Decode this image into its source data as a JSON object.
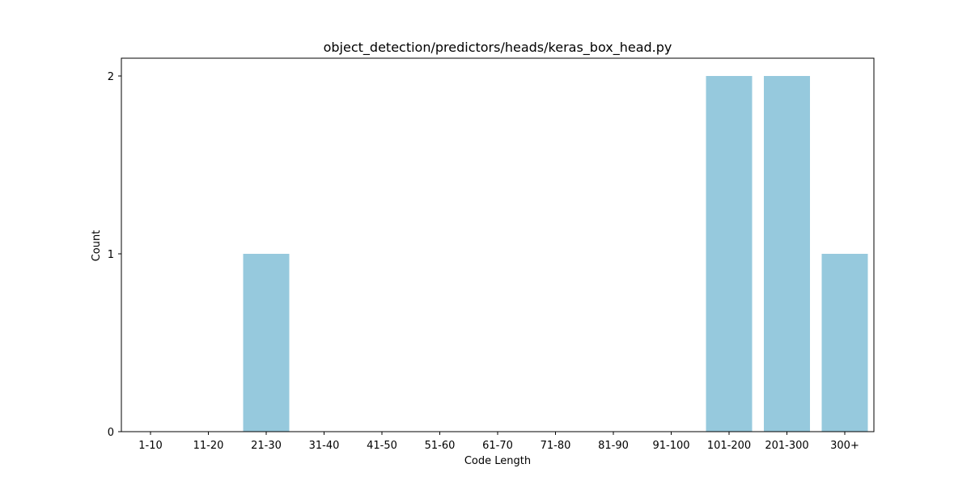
{
  "chart_data": {
    "type": "bar",
    "title": "object_detection/predictors/heads/keras_box_head.py",
    "xlabel": "Code Length",
    "ylabel": "Count",
    "categories": [
      "1-10",
      "11-20",
      "21-30",
      "31-40",
      "41-50",
      "51-60",
      "61-70",
      "71-80",
      "81-90",
      "91-100",
      "101-200",
      "201-300",
      "300+"
    ],
    "values": [
      0,
      0,
      1,
      0,
      0,
      0,
      0,
      0,
      0,
      0,
      2,
      2,
      1
    ],
    "ylim": [
      0,
      2.1
    ],
    "yticks": [
      "0",
      "1",
      "2"
    ],
    "grid": false,
    "bar_color": "#96c9dd"
  }
}
